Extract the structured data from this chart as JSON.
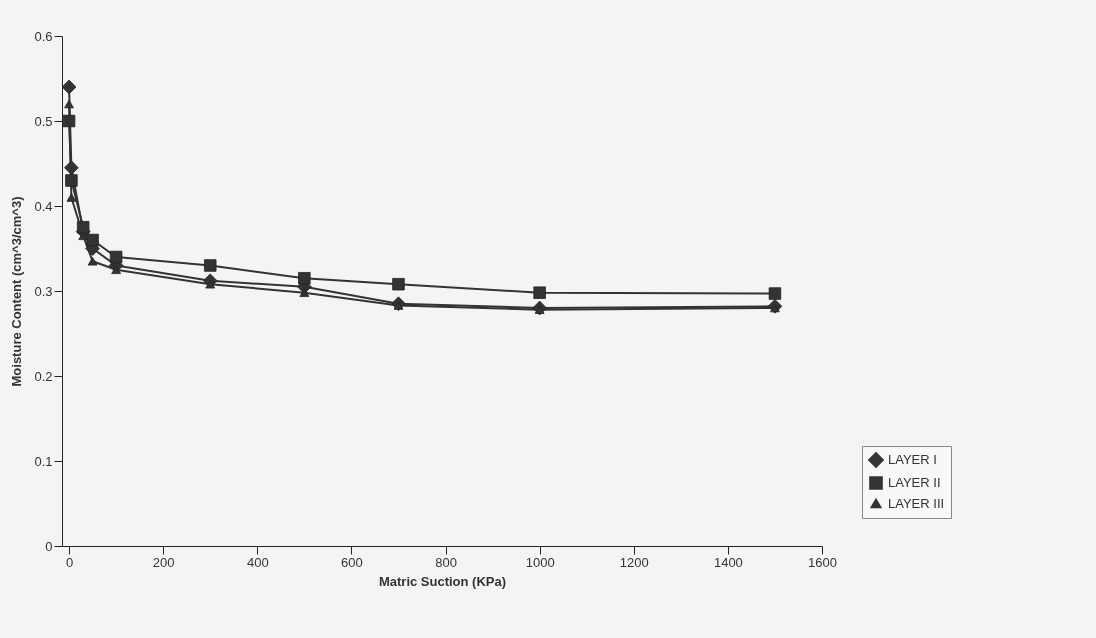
{
  "chart_data": {
    "type": "line",
    "xlabel": "Matric Suction (KPa)",
    "ylabel": "Moisture Content (cm^3/cm^3)",
    "x": [
      0,
      5,
      30,
      50,
      100,
      300,
      500,
      700,
      1000,
      1500
    ],
    "series": [
      {
        "name": "LAYER I",
        "color": "#333333",
        "marker": "diamond",
        "values": [
          0.54,
          0.445,
          0.37,
          0.35,
          0.33,
          0.312,
          0.305,
          0.285,
          0.28,
          0.282
        ]
      },
      {
        "name": "LAYER II",
        "color": "#333333",
        "marker": "square",
        "values": [
          0.5,
          0.43,
          0.375,
          0.36,
          0.34,
          0.33,
          0.315,
          0.308,
          0.298,
          0.297
        ]
      },
      {
        "name": "LAYER III",
        "color": "#333333",
        "marker": "triangle",
        "values": [
          0.52,
          0.41,
          0.365,
          0.335,
          0.325,
          0.308,
          0.298,
          0.283,
          0.278,
          0.28
        ]
      }
    ],
    "xlim": [
      -15,
      1600
    ],
    "xticks": [
      0,
      200,
      400,
      600,
      800,
      1000,
      1200,
      1400,
      1600
    ],
    "ylim": [
      0,
      0.6
    ],
    "yticks": [
      0,
      0.1,
      0.2,
      0.3,
      0.4,
      0.5,
      0.6
    ],
    "grid": false,
    "legend": "bottom right",
    "line_style": "solid"
  }
}
